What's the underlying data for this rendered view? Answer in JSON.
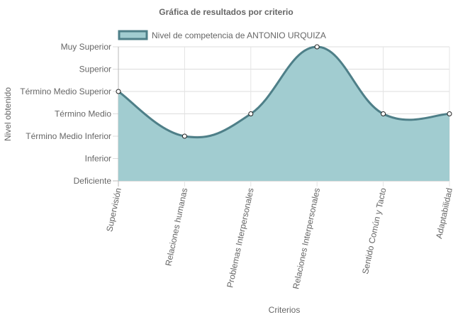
{
  "chart_data": {
    "type": "area",
    "title": "Gráfica de resultados por criterio",
    "xlabel": "Criterios",
    "ylabel": "Nivel obtenido",
    "categories": [
      "Supervisión",
      "Relaciones humanas",
      "Problemas Interpersonales",
      "Relaciones Interpersonales",
      "Sentido Común y Tacto",
      "Adaptabilidad"
    ],
    "y_levels": [
      "Deficiente",
      "Inferior",
      "Término Medio Inferior",
      "Término Medio",
      "Término Medio Superior",
      "Superior",
      "Muy Superior"
    ],
    "ylim": [
      0,
      6
    ],
    "grid": true,
    "legend_position": "top",
    "series": [
      {
        "name": "Nivel de competencia de ANTONIO URQUIZA",
        "values": [
          4,
          2,
          3,
          6,
          3,
          3
        ],
        "line_color": "#4e7f88",
        "fill_color": "#a1ccd0"
      }
    ]
  }
}
